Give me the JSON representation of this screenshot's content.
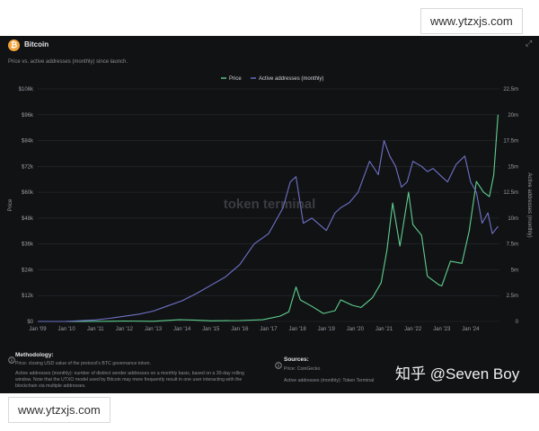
{
  "header": {
    "title": "Bitcoin",
    "subtitle": "Price vs. active addresses (monthly) since launch.",
    "coin_icon": "bitcoin-icon"
  },
  "watermarks": {
    "top": "www.ytzxjs.com",
    "bottom": "www.ytzxjs.com",
    "center": "token terminal",
    "credit": "知乎 @Seven Boy"
  },
  "footer": {
    "methodology_title": "Methodology:",
    "methodology_price": "Price: closing USD value of the protocol's BTC governance token.",
    "methodology_active_1": "Active addresses (monthly): number of distinct sender addresses on a monthly basis, based on a 30-day rolling",
    "methodology_active_2": "window. Note that the UTXO model used by Bitcoin may more frequently result in one user interacting with the",
    "methodology_active_3": "blockchain via multiple addresses.",
    "sources_title": "Sources:",
    "sources_price": "Price: CoinGecko",
    "sources_active": "Active addresses (monthly): Token Terminal"
  },
  "chart_data": {
    "type": "line",
    "title": "Bitcoin",
    "subtitle": "Price vs. active addresses (monthly) since launch.",
    "legend_position": "top-center",
    "grid": true,
    "x_ticks": [
      "Jan '09",
      "Jan '10",
      "Jan '11",
      "Jan '12",
      "Jan '13",
      "Jan '14",
      "Jan '15",
      "Jan '16",
      "Jan '17",
      "Jan '18",
      "Jan '19",
      "Jan '20",
      "Jan '21",
      "Jan '22",
      "Jan '23",
      "Jan '24"
    ],
    "xlim": [
      2009,
      2025
    ],
    "left_axis": {
      "label": "Price",
      "ylim": [
        0,
        108000
      ],
      "ticks": [
        "$0",
        "$12k",
        "$24k",
        "$36k",
        "$48k",
        "$60k",
        "$72k",
        "$84k",
        "$96k",
        "$108k"
      ]
    },
    "right_axis": {
      "label": "Active addresses (monthly)",
      "ylim": [
        0,
        22500000
      ],
      "ticks": [
        "0",
        "2.5m",
        "5m",
        "7.5m",
        "10m",
        "12.5m",
        "15m",
        "17.5m",
        "20m",
        "22.5m"
      ]
    },
    "series": [
      {
        "name": "Price",
        "axis": "left",
        "color": "#5fd08f",
        "x": [
          2009.0,
          2010.5,
          2011.4,
          2012.0,
          2013.0,
          2013.9,
          2014.5,
          2015.0,
          2016.0,
          2016.8,
          2017.4,
          2017.7,
          2017.95,
          2018.1,
          2018.5,
          2018.9,
          2019.3,
          2019.5,
          2019.9,
          2020.2,
          2020.6,
          2020.9,
          2021.1,
          2021.3,
          2021.55,
          2021.85,
          2022.0,
          2022.3,
          2022.5,
          2022.9,
          2023.0,
          2023.3,
          2023.7,
          2023.95,
          2024.2,
          2024.45,
          2024.65,
          2024.8,
          2024.95
        ],
        "y": [
          0,
          0,
          100,
          200,
          100,
          800,
          600,
          300,
          400,
          800,
          2500,
          4500,
          16000,
          10000,
          7000,
          3700,
          5000,
          10000,
          7500,
          6500,
          11000,
          18000,
          33000,
          55000,
          35000,
          60000,
          45000,
          40000,
          21000,
          17000,
          16500,
          28000,
          27000,
          42000,
          65000,
          60000,
          58000,
          68000,
          96000
        ]
      },
      {
        "name": "Active addresses (monthly)",
        "axis": "right",
        "color": "#6f72c8",
        "x": [
          2009.0,
          2010.0,
          2011.0,
          2011.5,
          2012.0,
          2012.5,
          2013.0,
          2013.5,
          2014.0,
          2014.5,
          2015.0,
          2015.5,
          2016.0,
          2016.5,
          2017.0,
          2017.5,
          2017.75,
          2017.95,
          2018.2,
          2018.5,
          2019.0,
          2019.3,
          2019.5,
          2019.8,
          2020.1,
          2020.5,
          2020.8,
          2021.0,
          2021.2,
          2021.4,
          2021.6,
          2021.8,
          2022.0,
          2022.3,
          2022.5,
          2022.7,
          2023.0,
          2023.2,
          2023.5,
          2023.8,
          2024.0,
          2024.2,
          2024.4,
          2024.6,
          2024.75,
          2024.95
        ],
        "y": [
          0,
          10000,
          150000,
          300000,
          500000,
          700000,
          1000000,
          1500000,
          2000000,
          2700000,
          3500000,
          4300000,
          5500000,
          7500000,
          8500000,
          11000000,
          13500000,
          14000000,
          9500000,
          10000000,
          8800000,
          10500000,
          11000000,
          11500000,
          12500000,
          15500000,
          14200000,
          17500000,
          16000000,
          15000000,
          13000000,
          13500000,
          15500000,
          15000000,
          14500000,
          14800000,
          14000000,
          13500000,
          15200000,
          16000000,
          13500000,
          12500000,
          9500000,
          10500000,
          8500000,
          9200000
        ]
      }
    ]
  }
}
